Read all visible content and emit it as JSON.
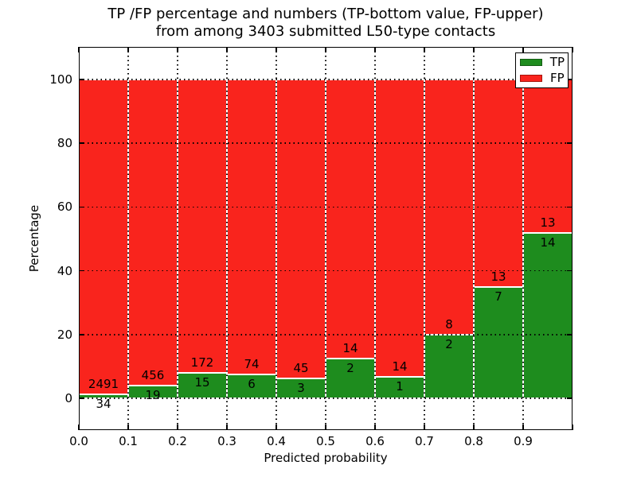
{
  "figure": {
    "title_line1": "TP /FP percentage and numbers (TP-bottom value, FP-upper)",
    "title_line2": "from among 3403 submitted L50-type contacts",
    "xlabel": "Predicted probability",
    "ylabel": "Percentage"
  },
  "legend": {
    "tp_label": "TP",
    "fp_label": "FP"
  },
  "colors": {
    "tp_green": "#1e8c1e",
    "fp_red": "#f9241d",
    "bar_edge": "#ffffff",
    "grid": "#000000",
    "background": "#ffffff",
    "legend_tp_edge": "#145c14",
    "legend_fp_edge": "#a81309"
  },
  "chart_data": {
    "type": "bar",
    "variant": "stacked-percentage",
    "title": "TP /FP percentage and numbers (TP-bottom value, FP-upper) from among 3403 submitted L50-type contacts",
    "xlabel": "Predicted probability",
    "ylabel": "Percentage",
    "total_submitted": 3403,
    "xlim": [
      0.0,
      1.0
    ],
    "ylim": [
      -10.5,
      110.5
    ],
    "bin_width": 0.1,
    "bin_starts": [
      0.0,
      0.1,
      0.2,
      0.3,
      0.4,
      0.5,
      0.6,
      0.7,
      0.8,
      0.9
    ],
    "categories": [
      "0.0-0.1",
      "0.1-0.2",
      "0.2-0.3",
      "0.3-0.4",
      "0.4-0.5",
      "0.5-0.6",
      "0.6-0.7",
      "0.7-0.8",
      "0.8-0.9",
      "0.9-1.0"
    ],
    "x_tick_labels": [
      "0.0",
      "0.1",
      "0.2",
      "0.3",
      "0.4",
      "0.5",
      "0.6",
      "0.7",
      "0.8",
      "0.9"
    ],
    "y_ticks": [
      0,
      20,
      40,
      60,
      80,
      100
    ],
    "grid": "dotted-black",
    "legend_position": "upper-right",
    "series": [
      {
        "name": "TP",
        "color": "#1e8c1e",
        "counts": [
          34,
          19,
          15,
          6,
          3,
          2,
          1,
          2,
          7,
          14
        ]
      },
      {
        "name": "FP",
        "color": "#f9241d",
        "counts": [
          2491,
          456,
          172,
          74,
          45,
          14,
          14,
          8,
          13,
          13
        ]
      }
    ],
    "tp_percent_of_bin": [
      1.35,
      4.0,
      8.02,
      7.5,
      6.25,
      12.5,
      6.67,
      20.0,
      35.0,
      51.85
    ]
  }
}
